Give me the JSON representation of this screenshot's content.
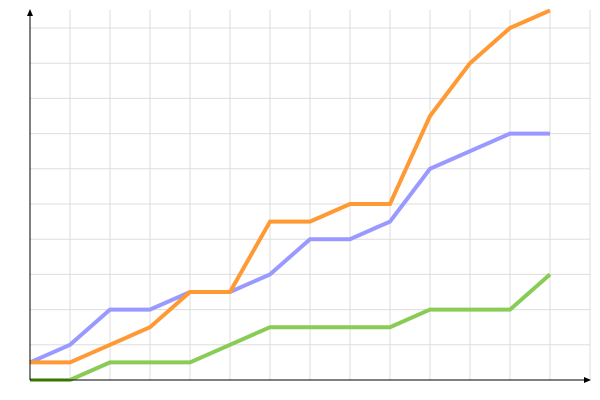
{
  "chart_data": {
    "type": "line",
    "title": "",
    "xlabel": "",
    "ylabel": "",
    "x": [
      0,
      1,
      2,
      3,
      4,
      5,
      6,
      7,
      8,
      9,
      10,
      11,
      12,
      13
    ],
    "xlim": [
      0,
      13.5
    ],
    "ylim": [
      0,
      10.5
    ],
    "grid": true,
    "legend": "none",
    "series": [
      {
        "color": "#9999ff",
        "values": [
          0.5,
          1,
          2,
          2,
          2.5,
          2.5,
          3,
          4,
          4,
          4.5,
          6,
          6.5,
          7,
          7
        ]
      },
      {
        "color": "#ff9933",
        "values": [
          0.5,
          0.5,
          1,
          1.5,
          2.5,
          2.5,
          4.5,
          4.5,
          5,
          5,
          7.5,
          9,
          10,
          10.5
        ]
      },
      {
        "color": "#88cc55",
        "values": [
          0,
          0,
          0.5,
          0.5,
          0.5,
          1,
          1.5,
          1.5,
          1.5,
          1.5,
          2,
          2,
          2,
          3
        ]
      }
    ]
  }
}
